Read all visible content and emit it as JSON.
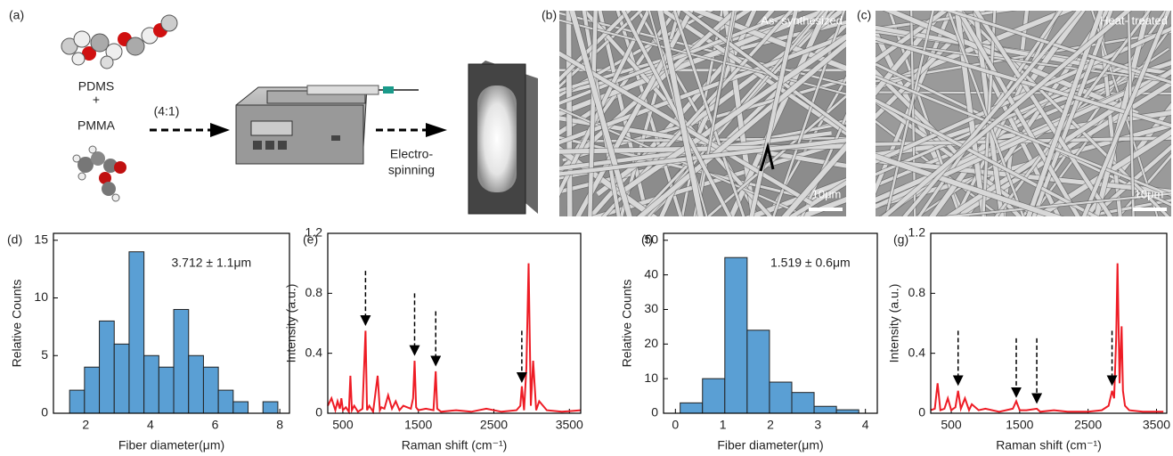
{
  "figure": {
    "panel_a": {
      "label": "(a)",
      "pdms": "PDMS",
      "plus": "+",
      "pmma": "PMMA",
      "ratio": "(4:1)",
      "process": [
        "Electro-",
        "spinning"
      ]
    },
    "panel_b": {
      "label": "(b)",
      "caption": "As- synthesized",
      "scale_bar": "10μm"
    },
    "panel_c": {
      "label": "(c)",
      "caption": "Heat- treated",
      "scale_bar": "10μm"
    }
  },
  "chart_data": [
    {
      "type": "histogram",
      "panel_label": "(d)",
      "xlabel": "Fiber diameter(μm)",
      "ylabel": "Relative Counts",
      "annotation": "3.712 ± 1.1μm",
      "bins": [
        1.5,
        1.96,
        2.42,
        2.88,
        3.34,
        3.8,
        4.26,
        4.72,
        5.18,
        5.64,
        6.1,
        6.56,
        7.02,
        7.48,
        7.94
      ],
      "values": [
        2,
        4,
        8,
        6,
        14,
        5,
        4,
        9,
        5,
        4,
        2,
        1,
        0,
        1
      ],
      "color": "#5a9fd4",
      "xlim": [
        1,
        8.3
      ],
      "xticks": [
        2,
        4,
        6,
        8
      ],
      "ylim": [
        0,
        15.6
      ],
      "yticks": [
        0,
        5,
        10,
        15
      ]
    },
    {
      "type": "line",
      "panel_label": "(e)",
      "xlabel": "Raman shift (cm⁻¹)",
      "ylabel": "Intensity (a.u.)",
      "x": [
        300,
        350,
        400,
        430,
        460,
        480,
        500,
        540,
        580,
        600,
        620,
        650,
        700,
        760,
        800,
        820,
        850,
        900,
        960,
        990,
        1010,
        1050,
        1100,
        1150,
        1200,
        1250,
        1300,
        1400,
        1430,
        1450,
        1470,
        1500,
        1600,
        1700,
        1730,
        1750,
        1800,
        2000,
        2200,
        2400,
        2600,
        2800,
        2850,
        2870,
        2900,
        2930,
        2960,
        2990,
        3020,
        3060,
        3100,
        3200,
        3400,
        3650
      ],
      "values": [
        0.05,
        0.1,
        0.02,
        0.08,
        0.03,
        0.1,
        0.02,
        0.04,
        0.01,
        0.25,
        0.02,
        0.05,
        0.01,
        0.03,
        0.55,
        0.02,
        0.05,
        0.01,
        0.25,
        0.02,
        0.04,
        0.03,
        0.12,
        0.03,
        0.08,
        0.02,
        0.05,
        0.03,
        0.1,
        0.35,
        0.04,
        0.02,
        0.03,
        0.02,
        0.28,
        0.03,
        0.01,
        0.02,
        0.01,
        0.03,
        0.01,
        0.02,
        0.05,
        0.18,
        0.02,
        0.3,
        1.0,
        0.05,
        0.35,
        0.02,
        0.08,
        0.02,
        0.01,
        0.02
      ],
      "color": "#ee1c25",
      "xlim": [
        300,
        3650
      ],
      "xticks": [
        500,
        1500,
        2500,
        3500
      ],
      "ylim": [
        0,
        1.2
      ],
      "yticks": [
        0,
        0.4,
        0.8,
        1.2
      ],
      "arrows": [
        {
          "x": 800,
          "y_from": 0.95,
          "y_to": 0.6
        },
        {
          "x": 1450,
          "y_from": 0.8,
          "y_to": 0.4
        },
        {
          "x": 1730,
          "y_from": 0.68,
          "y_to": 0.33
        },
        {
          "x": 2870,
          "y_from": 0.55,
          "y_to": 0.22
        }
      ]
    },
    {
      "type": "histogram",
      "panel_label": "(f)",
      "xlabel": "Fiber diameter(μm)",
      "ylabel": "Relative Counts",
      "annotation": "1.519 ± 0.6μm",
      "bins": [
        0.1,
        0.57,
        1.04,
        1.51,
        1.98,
        2.45,
        2.92,
        3.39,
        3.86
      ],
      "values": [
        3,
        10,
        45,
        24,
        9,
        6,
        2,
        1
      ],
      "color": "#5a9fd4",
      "xlim": [
        -0.25,
        4.25
      ],
      "xticks": [
        0,
        1,
        2,
        3,
        4
      ],
      "ylim": [
        0,
        52
      ],
      "yticks": [
        0,
        10,
        20,
        30,
        40,
        50
      ]
    },
    {
      "type": "line",
      "panel_label": "(g)",
      "xlabel": "Raman shift (cm⁻¹)",
      "ylabel": "Intensity (a.u.)",
      "x": [
        200,
        260,
        300,
        340,
        400,
        450,
        500,
        560,
        600,
        640,
        700,
        760,
        800,
        900,
        1000,
        1200,
        1400,
        1450,
        1500,
        1600,
        1750,
        1800,
        2000,
        2200,
        2500,
        2700,
        2800,
        2850,
        2880,
        2910,
        2930,
        2960,
        2990,
        3010,
        3040,
        3100,
        3300,
        3600
      ],
      "values": [
        0.02,
        0.03,
        0.2,
        0.02,
        0.03,
        0.1,
        0.02,
        0.04,
        0.15,
        0.03,
        0.1,
        0.02,
        0.06,
        0.02,
        0.03,
        0.01,
        0.03,
        0.08,
        0.02,
        0.02,
        0.03,
        0.01,
        0.02,
        0.01,
        0.01,
        0.02,
        0.05,
        0.15,
        0.1,
        0.5,
        1.0,
        0.2,
        0.58,
        0.15,
        0.05,
        0.02,
        0.01,
        0.01
      ],
      "color": "#ee1c25",
      "xlim": [
        200,
        3650
      ],
      "xticks": [
        500,
        1500,
        2500,
        3500
      ],
      "ylim": [
        0,
        1.2
      ],
      "yticks": [
        0,
        0.4,
        0.8,
        1.2
      ],
      "arrows": [
        {
          "x": 600,
          "y_from": 0.55,
          "y_to": 0.2
        },
        {
          "x": 1450,
          "y_from": 0.5,
          "y_to": 0.12
        },
        {
          "x": 1750,
          "y_from": 0.5,
          "y_to": 0.08
        },
        {
          "x": 2850,
          "y_from": 0.55,
          "y_to": 0.2
        }
      ]
    }
  ]
}
